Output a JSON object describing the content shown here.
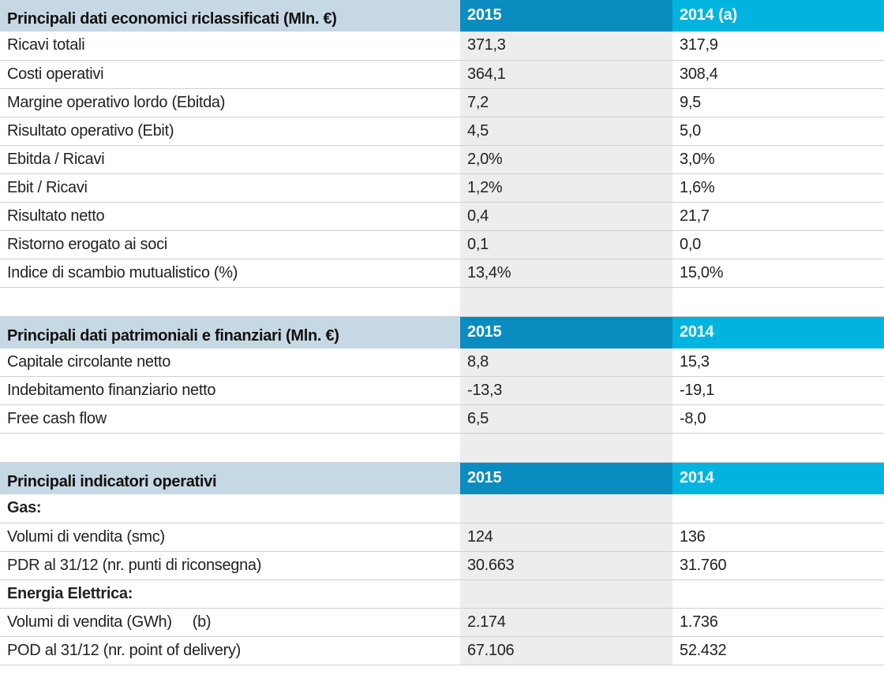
{
  "economici": {
    "title": "Principali dati economici riclassificati (Mln. €)",
    "col_2015": "2015",
    "col_2014": "2014",
    "col_2014_note": "(a)",
    "rows": [
      {
        "label": "Ricavi totali",
        "v2015": "371,3",
        "v2014": "317,9"
      },
      {
        "label": "Costi operativi",
        "v2015": "364,1",
        "v2014": "308,4"
      },
      {
        "label": "Margine operativo lordo (Ebitda)",
        "v2015": "7,2",
        "v2014": "9,5"
      },
      {
        "label": "Risultato operativo (Ebit)",
        "v2015": "4,5",
        "v2014": "5,0"
      },
      {
        "label": "Ebitda / Ricavi",
        "v2015": "2,0%",
        "v2014": "3,0%"
      },
      {
        "label": "Ebit / Ricavi",
        "v2015": "1,2%",
        "v2014": "1,6%"
      },
      {
        "label": "Risultato netto",
        "v2015": "0,4",
        "v2014": "21,7"
      },
      {
        "label": "Ristorno erogato ai soci",
        "v2015": "0,1",
        "v2014": "0,0"
      },
      {
        "label": "Indice di scambio mutualistico (%)",
        "v2015": "13,4%",
        "v2014": "15,0%"
      }
    ]
  },
  "patrimoniali": {
    "title": "Principali dati patrimoniali e finanziari (Mln. €)",
    "col_2015": "2015",
    "col_2014": "2014",
    "rows": [
      {
        "label": "Capitale circolante netto",
        "v2015": "8,8",
        "v2014": "15,3"
      },
      {
        "label": "Indebitamento finanziario netto",
        "v2015": "-13,3",
        "v2014": "-19,1"
      },
      {
        "label": "Free cash flow",
        "v2015": "6,5",
        "v2014": "-8,0"
      }
    ]
  },
  "operativi": {
    "title": "Principali indicatori operativi",
    "col_2015": "2015",
    "col_2014": "2014",
    "gas": {
      "heading": "Gas:",
      "volumi": {
        "label": "Volumi di vendita (smc)",
        "v2015": "124",
        "v2014": "136"
      },
      "pdr": {
        "label": "PDR al 31/12 (nr. punti di riconsegna)",
        "v2015": "30.663",
        "v2014": "31.760"
      }
    },
    "energia": {
      "heading": "Energia Elettrica:",
      "volumi": {
        "label": "Volumi di vendita (GWh)",
        "note": "(b)",
        "v2015": "2.174",
        "v2014": "1.736"
      },
      "pod": {
        "label": "POD al 31/12 (nr. point of delivery)",
        "v2015": "67.106",
        "v2014": "52.432"
      }
    }
  }
}
